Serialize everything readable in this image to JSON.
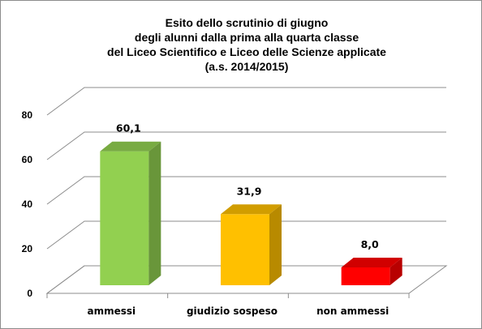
{
  "chart_data": {
    "type": "bar",
    "title_lines": [
      "Esito dello scrutinio di giugno",
      "degli alunni dalla prima alla quarta classe",
      "del Liceo Scientifico e Liceo delle Scienze applicate",
      "(a.s. 2014/2015)"
    ],
    "categories": [
      "ammessi",
      "giudizio sospeso",
      "non ammessi"
    ],
    "values": [
      60.1,
      31.9,
      8.0
    ],
    "data_labels": [
      "60,1",
      "31,9",
      "8,0"
    ],
    "colors": [
      "#92d050",
      "#ffc000",
      "#ff0000"
    ],
    "ylim": [
      0,
      80
    ],
    "yticks": [
      0,
      20,
      40,
      60,
      80
    ],
    "grid": true,
    "three_d": true,
    "legend": "none"
  }
}
